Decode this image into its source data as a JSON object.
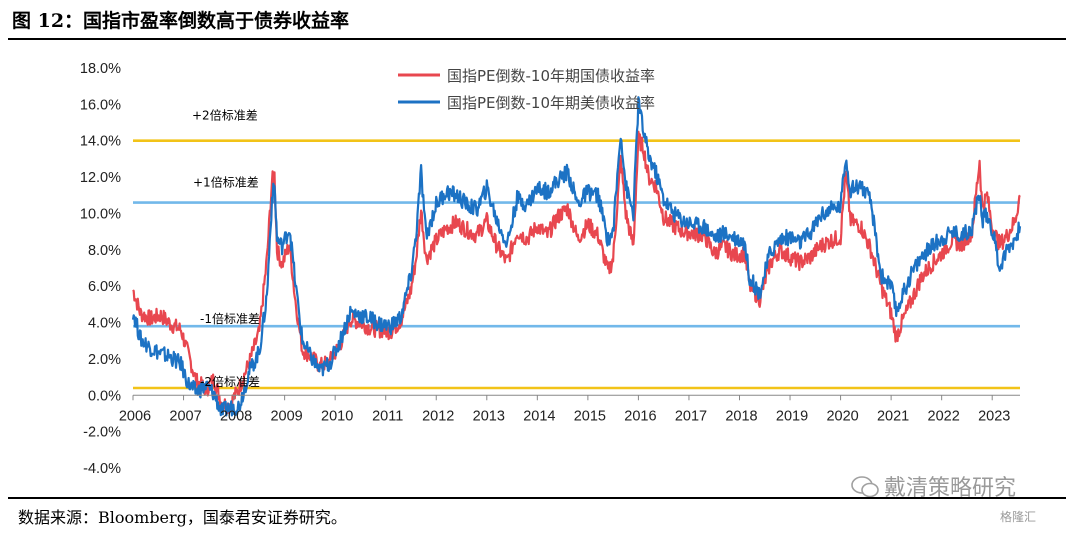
{
  "title": "图 12：国指市盈率倒数高于债券收益率",
  "source": "数据来源：Bloomberg，国泰君安证券研究。",
  "watermark": "戴清策略研究",
  "watermark2": "格隆汇",
  "chart_data": {
    "type": "line",
    "xlabel": "",
    "ylabel": "",
    "ylim": [
      -4.0,
      18.0
    ],
    "yticks": [
      "18.0%",
      "16.0%",
      "14.0%",
      "12.0%",
      "10.0%",
      "8.0%",
      "6.0%",
      "4.0%",
      "2.0%",
      "0.0%",
      "-2.0%",
      "-4.0%"
    ],
    "ytick_values": [
      18,
      16,
      14,
      12,
      10,
      8,
      6,
      4,
      2,
      0,
      -2,
      -4
    ],
    "xticks": [
      "2006",
      "2007",
      "2008",
      "2009",
      "2010",
      "2011",
      "2012",
      "2013",
      "2014",
      "2015",
      "2016",
      "2017",
      "2018",
      "2019",
      "2020",
      "2021",
      "2022",
      "2023"
    ],
    "xlim": [
      2006.0,
      2023.55
    ],
    "legend_position": "top-center",
    "grid": false,
    "reference_lines": [
      {
        "label": "+2倍标准差",
        "value": 14.0,
        "color": "#f2c318"
      },
      {
        "label": "+1倍标准差",
        "value": 10.6,
        "color": "#72b8ea"
      },
      {
        "label": "-1倍标准差",
        "value": 3.8,
        "color": "#72b8ea"
      },
      {
        "label": "-2倍标准差",
        "value": 0.4,
        "color": "#f2c318"
      }
    ],
    "series": [
      {
        "name": "国指PE倒数-10年期国债收益率",
        "color": "#e8474f",
        "x": [
          2006.0,
          2006.15,
          2006.35,
          2006.55,
          2006.75,
          2006.95,
          2007.1,
          2007.25,
          2007.45,
          2007.6,
          2007.75,
          2007.9,
          2008.1,
          2008.3,
          2008.5,
          2008.65,
          2008.75,
          2008.8,
          2008.85,
          2008.95,
          2009.1,
          2009.2,
          2009.35,
          2009.5,
          2009.7,
          2009.9,
          2010.1,
          2010.3,
          2010.5,
          2010.7,
          2010.9,
          2011.1,
          2011.3,
          2011.5,
          2011.6,
          2011.7,
          2011.8,
          2012.0,
          2012.2,
          2012.4,
          2012.6,
          2012.8,
          2013.0,
          2013.2,
          2013.4,
          2013.6,
          2013.8,
          2014.0,
          2014.2,
          2014.4,
          2014.6,
          2014.8,
          2015.0,
          2015.2,
          2015.4,
          2015.5,
          2015.65,
          2015.75,
          2015.9,
          2016.0,
          2016.1,
          2016.2,
          2016.35,
          2016.5,
          2016.7,
          2016.9,
          2017.1,
          2017.3,
          2017.5,
          2017.7,
          2017.9,
          2018.1,
          2018.2,
          2018.4,
          2018.6,
          2018.8,
          2019.0,
          2019.2,
          2019.4,
          2019.6,
          2019.8,
          2020.0,
          2020.1,
          2020.2,
          2020.4,
          2020.6,
          2020.8,
          2021.0,
          2021.1,
          2021.2,
          2021.4,
          2021.6,
          2021.8,
          2022.0,
          2022.2,
          2022.4,
          2022.6,
          2022.75,
          2022.8,
          2022.9,
          2023.0,
          2023.15,
          2023.3,
          2023.45,
          2023.55
        ],
        "y": [
          5.8,
          4.5,
          4.2,
          4.4,
          3.9,
          3.6,
          2.2,
          0.8,
          0.3,
          0.9,
          -0.4,
          -0.6,
          0.4,
          1.8,
          3.5,
          7.5,
          11.8,
          12.1,
          8.0,
          7.2,
          8.3,
          5.5,
          2.5,
          2.2,
          1.6,
          1.9,
          2.8,
          4.2,
          4.0,
          3.7,
          3.6,
          3.5,
          4.1,
          5.8,
          7.5,
          10.2,
          7.5,
          8.5,
          9.2,
          9.5,
          9.1,
          8.8,
          9.6,
          8.2,
          7.3,
          9.0,
          8.6,
          9.3,
          8.8,
          9.8,
          10.3,
          8.6,
          9.4,
          8.8,
          6.8,
          7.5,
          13.0,
          10.0,
          8.2,
          14.1,
          13.6,
          12.0,
          11.5,
          9.8,
          9.3,
          9.0,
          8.9,
          8.8,
          7.8,
          8.2,
          7.7,
          7.8,
          6.0,
          5.3,
          7.2,
          8.0,
          7.6,
          7.3,
          7.6,
          8.2,
          8.5,
          8.7,
          12.2,
          9.6,
          9.3,
          8.0,
          6.0,
          4.5,
          3.2,
          3.9,
          5.2,
          6.5,
          7.2,
          7.8,
          8.5,
          8.3,
          9.0,
          12.9,
          10.4,
          11.0,
          9.2,
          8.3,
          8.8,
          9.6,
          11.0
        ]
      },
      {
        "name": "国指PE倒数-10年期美债收益率",
        "color": "#1c72c4",
        "x": [
          2006.0,
          2006.15,
          2006.35,
          2006.55,
          2006.75,
          2006.95,
          2007.1,
          2007.25,
          2007.45,
          2007.6,
          2007.75,
          2007.9,
          2008.1,
          2008.3,
          2008.5,
          2008.65,
          2008.75,
          2008.8,
          2008.85,
          2008.95,
          2009.1,
          2009.2,
          2009.35,
          2009.5,
          2009.7,
          2009.9,
          2010.1,
          2010.3,
          2010.5,
          2010.7,
          2010.9,
          2011.1,
          2011.3,
          2011.5,
          2011.6,
          2011.7,
          2011.8,
          2012.0,
          2012.2,
          2012.4,
          2012.6,
          2012.8,
          2013.0,
          2013.2,
          2013.4,
          2013.6,
          2013.8,
          2014.0,
          2014.2,
          2014.4,
          2014.6,
          2014.8,
          2015.0,
          2015.2,
          2015.4,
          2015.5,
          2015.65,
          2015.75,
          2015.9,
          2016.0,
          2016.1,
          2016.2,
          2016.35,
          2016.5,
          2016.7,
          2016.9,
          2017.1,
          2017.3,
          2017.5,
          2017.7,
          2017.9,
          2018.1,
          2018.2,
          2018.4,
          2018.6,
          2018.8,
          2019.0,
          2019.2,
          2019.4,
          2019.6,
          2019.8,
          2020.0,
          2020.1,
          2020.2,
          2020.4,
          2020.6,
          2020.8,
          2021.0,
          2021.1,
          2021.2,
          2021.4,
          2021.6,
          2021.8,
          2022.0,
          2022.2,
          2022.4,
          2022.6,
          2022.75,
          2022.8,
          2022.9,
          2023.0,
          2023.15,
          2023.3,
          2023.45,
          2023.55
        ],
        "y": [
          4.6,
          3.1,
          2.6,
          2.3,
          2.1,
          1.7,
          0.6,
          0.2,
          0.5,
          0.1,
          -0.9,
          -0.7,
          -0.6,
          1.3,
          2.4,
          5.5,
          10.8,
          11.6,
          8.6,
          8.2,
          9.2,
          6.5,
          3.0,
          2.2,
          1.3,
          1.8,
          3.0,
          4.6,
          4.4,
          4.2,
          3.9,
          3.8,
          4.3,
          6.6,
          8.8,
          12.3,
          8.7,
          10.5,
          11.2,
          11.0,
          10.5,
          10.2,
          11.4,
          9.6,
          8.3,
          10.8,
          10.5,
          11.4,
          11.2,
          11.8,
          12.3,
          10.5,
          11.2,
          11.0,
          8.5,
          9.0,
          14.5,
          11.5,
          10.0,
          16.2,
          14.5,
          13.2,
          12.2,
          10.8,
          10.0,
          9.6,
          9.4,
          9.3,
          8.7,
          8.9,
          8.7,
          8.4,
          6.5,
          5.6,
          7.8,
          8.6,
          8.7,
          8.4,
          8.9,
          9.9,
          10.2,
          10.4,
          13.1,
          11.3,
          11.6,
          10.6,
          6.6,
          6.0,
          4.6,
          5.3,
          6.7,
          7.6,
          8.2,
          8.6,
          9.0,
          8.8,
          9.2,
          11.2,
          9.6,
          10.0,
          9.1,
          7.0,
          8.1,
          8.6,
          9.3
        ]
      }
    ]
  }
}
